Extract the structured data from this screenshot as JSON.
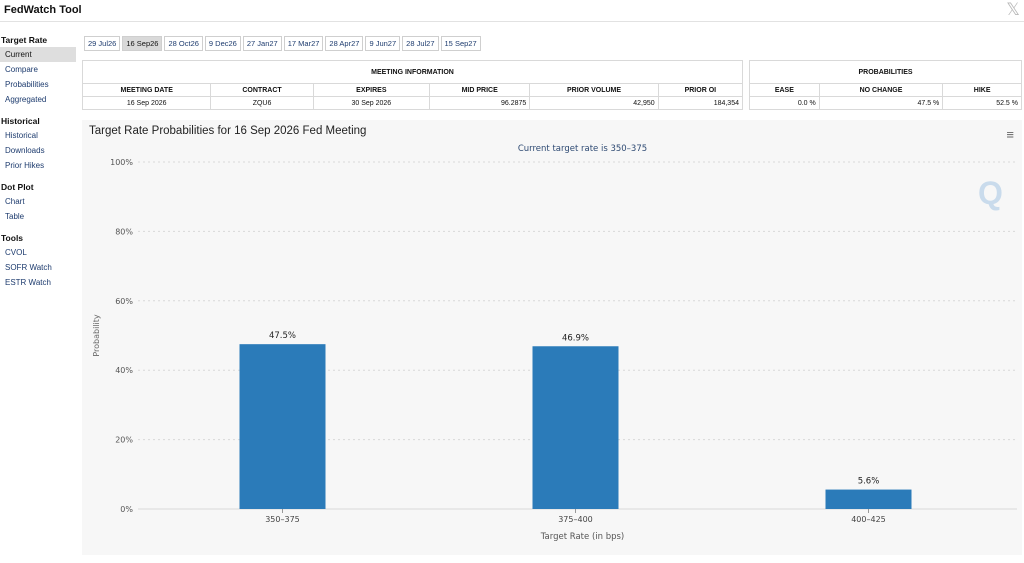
{
  "app": {
    "title": "FedWatch Tool",
    "close_glyph": "𝕏"
  },
  "sidebar": {
    "sections": [
      {
        "label": "Target Rate",
        "items": [
          {
            "label": "Current",
            "active": true
          },
          {
            "label": "Compare"
          },
          {
            "label": "Probabilities"
          },
          {
            "label": "Aggregated"
          }
        ]
      },
      {
        "label": "Historical",
        "items": [
          {
            "label": "Historical"
          },
          {
            "label": "Downloads"
          },
          {
            "label": "Prior Hikes"
          }
        ]
      },
      {
        "label": "Dot Plot",
        "items": [
          {
            "label": "Chart"
          },
          {
            "label": "Table"
          }
        ]
      },
      {
        "label": "Tools",
        "items": [
          {
            "label": "CVOL"
          },
          {
            "label": "SOFR Watch"
          },
          {
            "label": "ESTR Watch"
          }
        ]
      }
    ]
  },
  "meeting_tabs": [
    {
      "label": "29 Jul26"
    },
    {
      "label": "16 Sep26",
      "active": true
    },
    {
      "label": "28 Oct26"
    },
    {
      "label": "9 Dec26"
    },
    {
      "label": "27 Jan27"
    },
    {
      "label": "17 Mar27"
    },
    {
      "label": "28 Apr27"
    },
    {
      "label": "9 Jun27"
    },
    {
      "label": "28 Jul27"
    },
    {
      "label": "15 Sep27"
    }
  ],
  "meeting_info": {
    "title": "MEETING INFORMATION",
    "headers": [
      "MEETING DATE",
      "CONTRACT",
      "EXPIRES",
      "MID PRICE",
      "PRIOR VOLUME",
      "PRIOR OI"
    ],
    "row": [
      "16 Sep 2026",
      "ZQU6",
      "30 Sep 2026",
      "96.2875",
      "42,950",
      "184,354"
    ]
  },
  "probabilities": {
    "title": "PROBABILITIES",
    "headers": [
      "EASE",
      "NO CHANGE",
      "HIKE"
    ],
    "row": [
      "0.0 %",
      "47.5 %",
      "52.5 %"
    ]
  },
  "chart": {
    "title": "Target Rate Probabilities for 16 Sep 2026 Fed Meeting",
    "menu_glyph": "≡",
    "logo_text": "Q",
    "colors": {
      "bar": "#2b7bb9",
      "subtitle": "#2e4a73",
      "grid": "#d8d8d8"
    }
  },
  "chart_data": {
    "type": "bar",
    "title": "Target Rate Probabilities for 16 Sep 2026 Fed Meeting",
    "subtitle": "Current target rate is 350–375",
    "categories": [
      "350–375",
      "375–400",
      "400–425"
    ],
    "values": [
      47.5,
      46.9,
      5.6
    ],
    "data_labels": [
      "47.5%",
      "46.9%",
      "5.6%"
    ],
    "xlabel": "Target Rate (in bps)",
    "ylabel": "Probability",
    "ylim": [
      0,
      100
    ],
    "yticks": [
      0,
      20,
      40,
      60,
      80,
      100
    ],
    "ytick_labels": [
      "0%",
      "20%",
      "40%",
      "60%",
      "80%",
      "100%"
    ],
    "grid": true
  }
}
